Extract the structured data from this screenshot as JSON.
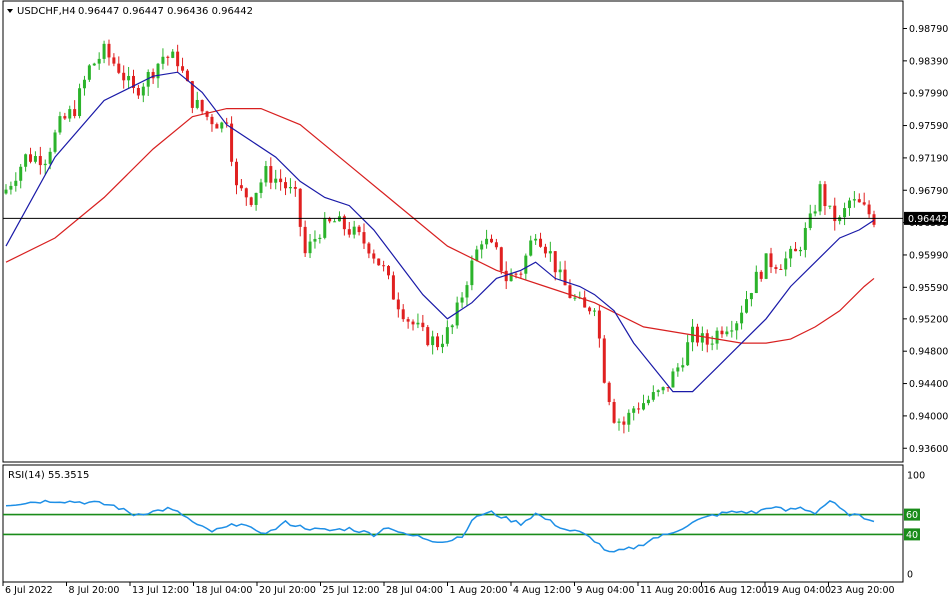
{
  "header": {
    "symbol": "USDCHF,H4",
    "ohlc": "0.96447 0.96447 0.96436 0.96442"
  },
  "rsi_header": "RSI(14) 55.3515",
  "colors": {
    "bull": "#2bb32b",
    "bear": "#e02020",
    "ma_fast": "#1a1aa8",
    "ma_slow": "#d82020",
    "rsi": "#1e8fe6",
    "rsi_levels": "#1a8c1a",
    "price_line": "#000000"
  },
  "chart_data": [
    {
      "type": "candlestick",
      "title": "USDCHF,H4",
      "ylim": [
        0.9343,
        0.9913
      ],
      "price_ticks": [
        "0.98790",
        "0.98390",
        "0.97990",
        "0.97590",
        "0.97190",
        "0.96790",
        "0.96390",
        "0.95990",
        "0.95590",
        "0.95200",
        "0.94800",
        "0.94400",
        "0.94000",
        "0.93600"
      ],
      "current_price": "0.96442",
      "x_ticks": [
        "6 Jul 2022",
        "8 Jul 20:00",
        "13 Jul 12:00",
        "18 Jul 04:00",
        "20 Jul 20:00",
        "25 Jul 12:00",
        "28 Jul 04:00",
        "1 Aug 20:00",
        "4 Aug 12:00",
        "9 Aug 04:00",
        "11 Aug 20:00",
        "16 Aug 12:00",
        "19 Aug 04:00",
        "23 Aug 20:00"
      ],
      "close_path": [
        [
          0,
          0.968
        ],
        [
          4,
          0.972
        ],
        [
          8,
          0.972
        ],
        [
          11,
          0.976
        ],
        [
          14,
          0.978
        ],
        [
          17,
          0.983
        ],
        [
          20,
          0.985
        ],
        [
          23,
          0.983
        ],
        [
          26,
          0.98
        ],
        [
          29,
          0.982
        ],
        [
          32,
          0.9845
        ],
        [
          35,
          0.984
        ],
        [
          38,
          0.979
        ],
        [
          41,
          0.977
        ],
        [
          44,
          0.976
        ],
        [
          45,
          0.977
        ],
        [
          47,
          0.968
        ],
        [
          50,
          0.967
        ],
        [
          53,
          0.97
        ],
        [
          56,
          0.969
        ],
        [
          59,
          0.967
        ],
        [
          61,
          0.96
        ],
        [
          64,
          0.963
        ],
        [
          67,
          0.964
        ],
        [
          70,
          0.963
        ],
        [
          74,
          0.961
        ],
        [
          77,
          0.958
        ],
        [
          79,
          0.955
        ],
        [
          82,
          0.952
        ],
        [
          85,
          0.95
        ],
        [
          88,
          0.949
        ],
        [
          91,
          0.951
        ],
        [
          94,
          0.957
        ],
        [
          97,
          0.962
        ],
        [
          100,
          0.96
        ],
        [
          102,
          0.957
        ],
        [
          105,
          0.958
        ],
        [
          108,
          0.963
        ],
        [
          111,
          0.96
        ],
        [
          113,
          0.957
        ],
        [
          115,
          0.955
        ],
        [
          118,
          0.953
        ],
        [
          120,
          0.954
        ],
        [
          122,
          0.945
        ],
        [
          124,
          0.94
        ],
        [
          126,
          0.939
        ],
        [
          128,
          0.941
        ],
        [
          131,
          0.942
        ],
        [
          134,
          0.943
        ],
        [
          137,
          0.946
        ],
        [
          140,
          0.95
        ],
        [
          143,
          0.949
        ],
        [
          146,
          0.951
        ],
        [
          149,
          0.952
        ],
        [
          152,
          0.956
        ],
        [
          155,
          0.959
        ],
        [
          158,
          0.959
        ],
        [
          161,
          0.96
        ],
        [
          164,
          0.964
        ],
        [
          166,
          0.968
        ],
        [
          168,
          0.965
        ],
        [
          170,
          0.964
        ],
        [
          172,
          0.9665
        ],
        [
          174,
          0.966
        ],
        [
          176,
          0.965
        ],
        [
          177,
          0.9644
        ]
      ],
      "ma_fast": [
        [
          0,
          0.961
        ],
        [
          10,
          0.972
        ],
        [
          20,
          0.979
        ],
        [
          30,
          0.982
        ],
        [
          35,
          0.9825
        ],
        [
          40,
          0.98
        ],
        [
          45,
          0.976
        ],
        [
          50,
          0.974
        ],
        [
          55,
          0.972
        ],
        [
          60,
          0.969
        ],
        [
          65,
          0.967
        ],
        [
          70,
          0.966
        ],
        [
          75,
          0.963
        ],
        [
          80,
          0.959
        ],
        [
          85,
          0.955
        ],
        [
          90,
          0.952
        ],
        [
          95,
          0.954
        ],
        [
          100,
          0.957
        ],
        [
          105,
          0.958
        ],
        [
          108,
          0.959
        ],
        [
          112,
          0.957
        ],
        [
          117,
          0.956
        ],
        [
          120,
          0.955
        ],
        [
          124,
          0.953
        ],
        [
          128,
          0.949
        ],
        [
          132,
          0.946
        ],
        [
          136,
          0.943
        ],
        [
          140,
          0.943
        ],
        [
          145,
          0.946
        ],
        [
          150,
          0.949
        ],
        [
          155,
          0.952
        ],
        [
          160,
          0.956
        ],
        [
          165,
          0.959
        ],
        [
          170,
          0.962
        ],
        [
          174,
          0.963
        ],
        [
          177,
          0.9642
        ]
      ],
      "ma_slow": [
        [
          0,
          0.959
        ],
        [
          10,
          0.962
        ],
        [
          20,
          0.967
        ],
        [
          30,
          0.973
        ],
        [
          38,
          0.977
        ],
        [
          45,
          0.978
        ],
        [
          52,
          0.978
        ],
        [
          60,
          0.976
        ],
        [
          70,
          0.971
        ],
        [
          80,
          0.966
        ],
        [
          90,
          0.961
        ],
        [
          100,
          0.958
        ],
        [
          110,
          0.956
        ],
        [
          120,
          0.954
        ],
        [
          130,
          0.951
        ],
        [
          140,
          0.95
        ],
        [
          150,
          0.949
        ],
        [
          155,
          0.949
        ],
        [
          160,
          0.9495
        ],
        [
          165,
          0.951
        ],
        [
          170,
          0.953
        ],
        [
          175,
          0.956
        ],
        [
          177,
          0.957
        ]
      ]
    },
    {
      "type": "line",
      "title": "RSI(14) 55.3515",
      "ylim": [
        0,
        100
      ],
      "ticks": [
        "100",
        "60",
        "40",
        "0"
      ],
      "levels": [
        60,
        40
      ],
      "series": [
        {
          "values": [
            [
              0,
              70
            ],
            [
              6,
              73
            ],
            [
              10,
              74
            ],
            [
              14,
              73
            ],
            [
              18,
              72
            ],
            [
              22,
              69
            ],
            [
              26,
              60
            ],
            [
              30,
              63
            ],
            [
              33,
              66
            ],
            [
              36,
              60
            ],
            [
              39,
              49
            ],
            [
              42,
              43
            ],
            [
              45,
              47
            ],
            [
              48,
              52
            ],
            [
              51,
              42
            ],
            [
              54,
              43
            ],
            [
              57,
              52
            ],
            [
              60,
              48
            ],
            [
              63,
              45
            ],
            [
              66,
              44
            ],
            [
              70,
              46
            ],
            [
              75,
              40
            ],
            [
              78,
              48
            ],
            [
              81,
              40
            ],
            [
              84,
              38
            ],
            [
              87,
              34
            ],
            [
              90,
              33
            ],
            [
              93,
              39
            ],
            [
              96,
              59
            ],
            [
              99,
              62
            ],
            [
              102,
              56
            ],
            [
              105,
              51
            ],
            [
              108,
              61
            ],
            [
              111,
              53
            ],
            [
              114,
              45
            ],
            [
              117,
              42
            ],
            [
              120,
              34
            ],
            [
              123,
              21
            ],
            [
              126,
              24
            ],
            [
              129,
              28
            ],
            [
              132,
              36
            ],
            [
              135,
              40
            ],
            [
              138,
              47
            ],
            [
              141,
              54
            ],
            [
              144,
              59
            ],
            [
              147,
              62
            ],
            [
              150,
              63
            ],
            [
              153,
              62
            ],
            [
              156,
              68
            ],
            [
              159,
              64
            ],
            [
              162,
              67
            ],
            [
              165,
              62
            ],
            [
              168,
              74
            ],
            [
              171,
              62
            ],
            [
              174,
              58
            ],
            [
              177,
              55
            ]
          ]
        }
      ]
    }
  ]
}
